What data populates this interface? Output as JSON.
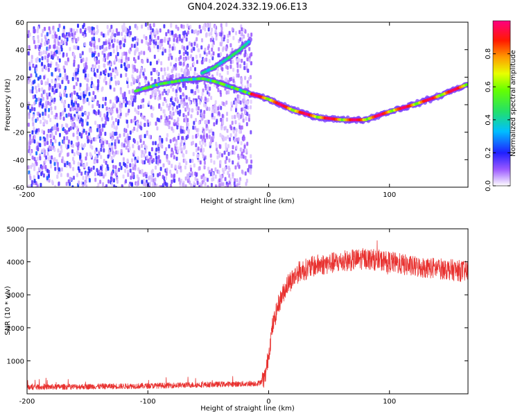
{
  "figure": {
    "title": "GN04.2024.332.19.06.E13"
  },
  "chart_data": [
    {
      "type": "heatmap",
      "name": "spectrogram",
      "title": "GN04.2024.332.19.06.E13",
      "xlabel": "Height of straight line (km)",
      "ylabel": "Frequency (Hz)",
      "xlim": [
        -200,
        165
      ],
      "ylim": [
        -60,
        60
      ],
      "xticks": [
        -200,
        -100,
        0,
        100
      ],
      "yticks": [
        60,
        40,
        20,
        0,
        -20,
        -40,
        -60
      ],
      "noise_region_x": [
        -200,
        -15
      ],
      "tracks": [
        {
          "name": "main-doppler-track",
          "x": [
            -110,
            -90,
            -70,
            -55,
            -45,
            -35,
            -25,
            -15,
            0,
            20,
            40,
            60,
            80,
            100,
            120,
            140,
            165
          ],
          "y": [
            10,
            15,
            18,
            19,
            17,
            14,
            11,
            8,
            4,
            -4,
            -9,
            -11,
            -11,
            -5,
            0,
            6,
            15
          ]
        },
        {
          "name": "secondary-track",
          "x": [
            -55,
            -45,
            -35,
            -25,
            -15
          ],
          "y": [
            23,
            27,
            33,
            39,
            47
          ]
        }
      ],
      "colorbar": {
        "label": "Normalized spectral amplitude",
        "range": [
          0.0,
          1.0
        ],
        "ticks": [
          0.0,
          0.2,
          0.4,
          0.6,
          0.8
        ],
        "tick_labels": [
          "0.0",
          "0.2",
          "0.4",
          "0.6",
          "0.8"
        ]
      }
    },
    {
      "type": "line",
      "name": "snr",
      "xlabel": "Height of straight line (km)",
      "ylabel": "SNR (10 * v/v)",
      "xlim": [
        -200,
        165
      ],
      "ylim": [
        0,
        5000
      ],
      "xticks": [
        -200,
        -100,
        0,
        100
      ],
      "yticks": [
        1000,
        2000,
        3000,
        4000,
        5000
      ],
      "series": [
        {
          "name": "SNR",
          "color": "#e8312f",
          "x": [
            -200,
            -150,
            -100,
            -50,
            -20,
            -8,
            -3,
            0,
            3,
            8,
            15,
            25,
            40,
            60,
            80,
            100,
            120,
            140,
            165
          ],
          "y": [
            200,
            220,
            240,
            280,
            300,
            320,
            500,
            1200,
            2000,
            2700,
            3300,
            3700,
            3900,
            4000,
            4100,
            4000,
            3850,
            3800,
            3700
          ]
        }
      ]
    }
  ]
}
